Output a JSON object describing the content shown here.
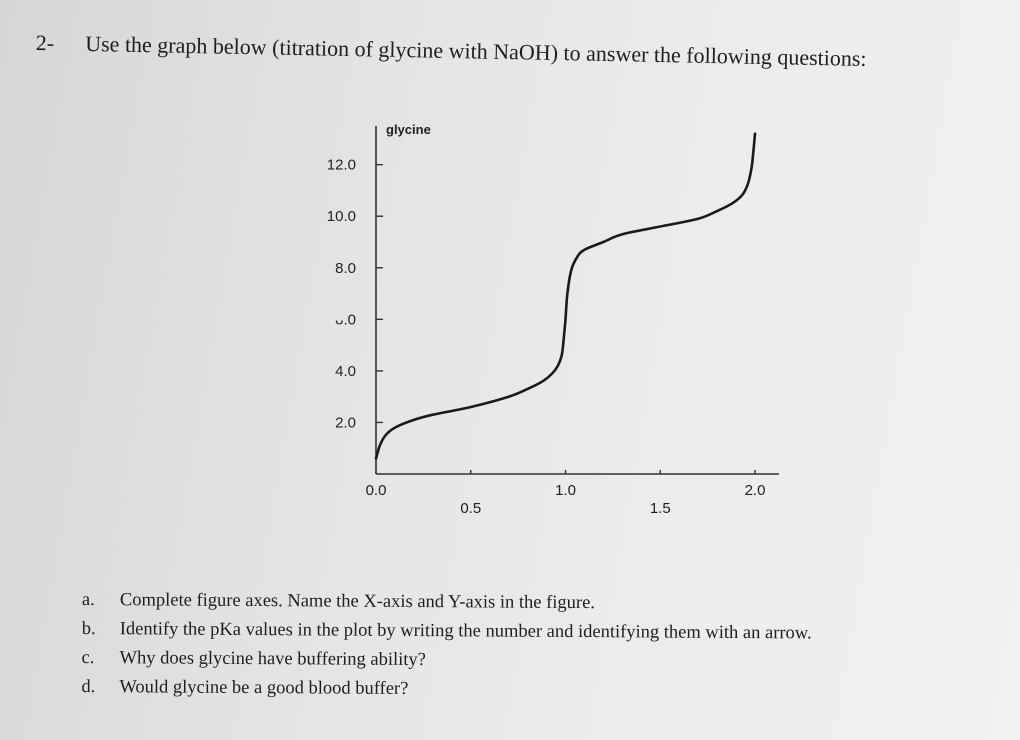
{
  "question": {
    "number": "2-",
    "text": "Use the graph below (titration of glycine with NaOH) to answer the following questions:"
  },
  "chart_data": {
    "type": "line",
    "series_label": "glycine",
    "xlim": [
      0,
      2.0
    ],
    "ylim": [
      0,
      13.5
    ],
    "x_ticks": [
      {
        "value": 0.0,
        "label": "0.0"
      },
      {
        "value": 0.5,
        "label": "0.5"
      },
      {
        "value": 1.0,
        "label": "1.0"
      },
      {
        "value": 1.5,
        "label": "1.5"
      },
      {
        "value": 2.0,
        "label": "2.0"
      }
    ],
    "y_ticks": [
      {
        "value": 2.0,
        "label": "2.0"
      },
      {
        "value": 4.0,
        "label": "4.0"
      },
      {
        "value": 6.0,
        "label": "ᴗ.0"
      },
      {
        "value": 8.0,
        "label": "8.0"
      },
      {
        "value": 10.0,
        "label": "10.0"
      },
      {
        "value": 12.0,
        "label": "12.0"
      }
    ],
    "series": [
      {
        "x": [
          0.0,
          0.02,
          0.05,
          0.1,
          0.2,
          0.3,
          0.5,
          0.7,
          0.8,
          0.88,
          0.93,
          0.96,
          0.98,
          0.99,
          1.0,
          1.01,
          1.03,
          1.06,
          1.1,
          1.2,
          1.3,
          1.5,
          1.7,
          1.8,
          1.88,
          1.93,
          1.96,
          1.98,
          1.99,
          2.0
        ],
        "y": [
          0.6,
          1.1,
          1.5,
          1.8,
          2.1,
          2.3,
          2.6,
          3.0,
          3.3,
          3.6,
          3.9,
          4.2,
          4.6,
          5.2,
          6.0,
          7.0,
          7.9,
          8.4,
          8.7,
          9.0,
          9.3,
          9.6,
          9.9,
          10.2,
          10.5,
          10.8,
          11.2,
          11.8,
          12.4,
          13.2
        ]
      }
    ]
  },
  "items": [
    {
      "letter": "a.",
      "text": "Complete figure axes. Name the X-axis and Y-axis in the figure."
    },
    {
      "letter": "b.",
      "text": "Identify the pKa values in the plot by writing the number and identifying them with an arrow."
    },
    {
      "letter": "c.",
      "text": "Why does glycine have buffering ability?"
    },
    {
      "letter": "d.",
      "text": "Would glycine be a good blood buffer?"
    }
  ]
}
